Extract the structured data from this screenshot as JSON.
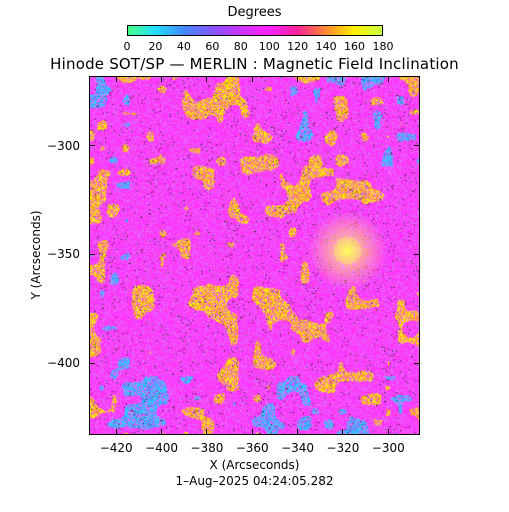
{
  "colorbar": {
    "title": "Degrees",
    "ticks": [
      "0",
      "20",
      "40",
      "60",
      "80",
      "100",
      "120",
      "140",
      "160",
      "180"
    ],
    "range": [
      0,
      180
    ],
    "colors": [
      "#44ff88",
      "#22ddff",
      "#4488ff",
      "#8855ff",
      "#cc33ff",
      "#ff22ff",
      "#ff2299",
      "#ff8833",
      "#ffee00",
      "#ccff44"
    ]
  },
  "title": "Hinode SOT/SP — MERLIN : Magnetic Field Inclination",
  "y_axis": {
    "label": "Y (Arcseconds)",
    "ticks": [
      {
        "label": "−300",
        "value": -300
      },
      {
        "label": "−350",
        "value": -350
      },
      {
        "label": "−400",
        "value": -400
      }
    ],
    "range": [
      -433,
      -268
    ]
  },
  "x_axis": {
    "label": "X (Arcseconds)",
    "ticks": [
      {
        "label": "−420",
        "value": -420
      },
      {
        "label": "−400",
        "value": -400
      },
      {
        "label": "−380",
        "value": -380
      },
      {
        "label": "−360",
        "value": -360
      },
      {
        "label": "−340",
        "value": -340
      },
      {
        "label": "−320",
        "value": -320
      },
      {
        "label": "−300",
        "value": -300
      }
    ],
    "range": [
      -432,
      -286
    ]
  },
  "timestamp": "1–Aug–2025 04:24:05.282",
  "map": {
    "dominant_colors": [
      "#ff33ff",
      "#ee66ff",
      "#ffee00",
      "#ff8844",
      "#33ccff"
    ],
    "spot_x": -318,
    "spot_y": -348
  }
}
